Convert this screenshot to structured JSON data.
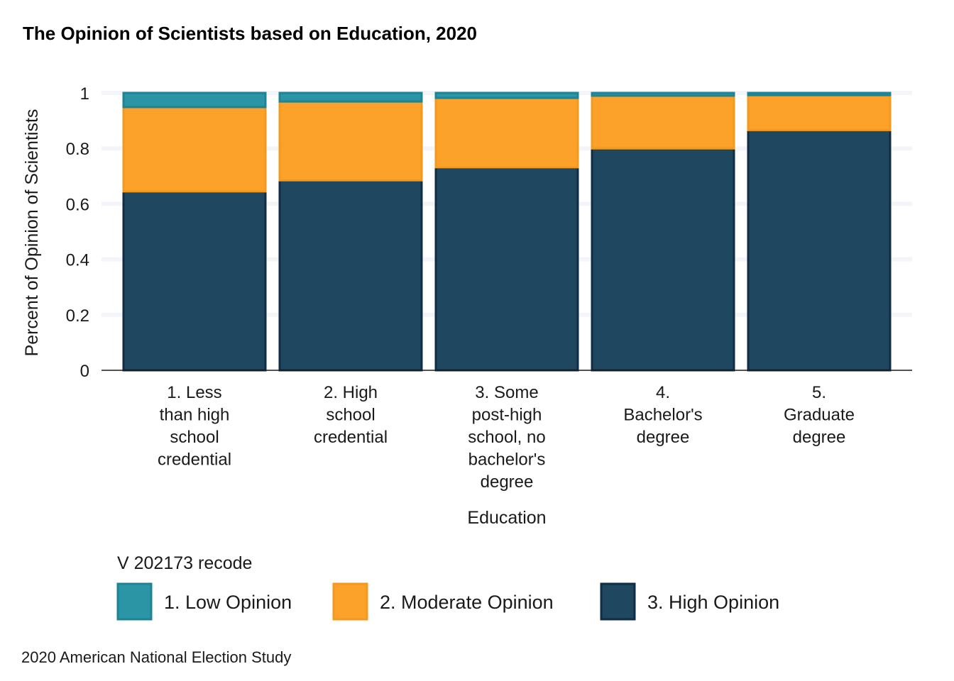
{
  "chart_data": {
    "type": "bar",
    "stacked": true,
    "title": "The Opinion of Scientists based on Education, 2020",
    "xlabel": "Education",
    "ylabel": "Percent of Opinion of Scientists",
    "caption": "2020 American National Election Study",
    "legend_title": "V 202173 recode",
    "legend_position": "bottom",
    "grid": true,
    "ylim": [
      0,
      1
    ],
    "yticks": [
      "0",
      "0.2",
      "0.4",
      "0.6",
      "0.8",
      "1"
    ],
    "categories": [
      [
        "1. Less",
        "than high",
        "school",
        "credential"
      ],
      [
        "2. High",
        "school",
        "credential"
      ],
      [
        "3. Some",
        "post-high",
        "school, no",
        "bachelor's",
        "degree"
      ],
      [
        "4.",
        "Bachelor's",
        "degree"
      ],
      [
        "5.",
        "Graduate",
        "degree"
      ]
    ],
    "series": [
      {
        "name": "3. High Opinion",
        "color": "#1F4760",
        "stroke": "#0F2E45",
        "values": [
          0.645,
          0.685,
          0.732,
          0.8,
          0.866
        ]
      },
      {
        "name": "2. Moderate Opinion",
        "color": "#FCA12A",
        "stroke": "#F39A1E",
        "values": [
          0.304,
          0.284,
          0.25,
          0.19,
          0.126
        ]
      },
      {
        "name": "1. Low Opinion",
        "color": "#2B95A6",
        "stroke": "#1E8494",
        "values": [
          0.051,
          0.031,
          0.018,
          0.01,
          0.008
        ]
      }
    ],
    "legend_order": [
      "1. Low Opinion",
      "2. Moderate Opinion",
      "3. High Opinion"
    ]
  }
}
